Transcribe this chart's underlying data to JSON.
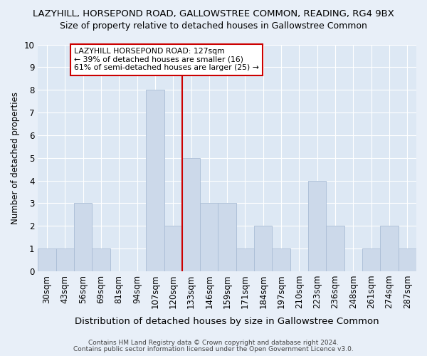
{
  "title": "LAZYHILL, HORSEPOND ROAD, GALLOWSTREE COMMON, READING, RG4 9BX",
  "subtitle": "Size of property relative to detached houses in Gallowstree Common",
  "xlabel": "Distribution of detached houses by size in Gallowstree Common",
  "ylabel": "Number of detached properties",
  "categories": [
    "30sqm",
    "43sqm",
    "56sqm",
    "69sqm",
    "81sqm",
    "94sqm",
    "107sqm",
    "120sqm",
    "133sqm",
    "146sqm",
    "159sqm",
    "171sqm",
    "184sqm",
    "197sqm",
    "210sqm",
    "223sqm",
    "236sqm",
    "248sqm",
    "261sqm",
    "274sqm",
    "287sqm"
  ],
  "values": [
    1,
    1,
    3,
    1,
    0,
    0,
    8,
    2,
    5,
    3,
    3,
    1,
    2,
    1,
    0,
    4,
    2,
    0,
    1,
    2,
    1
  ],
  "bar_color": "#ccd9ea",
  "bar_edge_color": "#aabdd6",
  "vline_idx": 8.0,
  "vline_color": "#cc0000",
  "annotation_line1": "LAZYHILL HORSEPOND ROAD: 127sqm",
  "annotation_line2": "← 39% of detached houses are smaller (16)",
  "annotation_line3": "61% of semi-detached houses are larger (25) →",
  "annotation_box_color": "#ffffff",
  "annotation_box_edge": "#cc0000",
  "ylim": [
    0,
    10
  ],
  "yticks": [
    0,
    1,
    2,
    3,
    4,
    5,
    6,
    7,
    8,
    9,
    10
  ],
  "footer1": "Contains HM Land Registry data © Crown copyright and database right 2024.",
  "footer2": "Contains public sector information licensed under the Open Government Licence v3.0.",
  "bg_color": "#e8eff8",
  "plot_bg_color": "#dde8f4",
  "title_fontsize": 9.5,
  "subtitle_fontsize": 9.0,
  "xlabel_fontsize": 9.5,
  "ylabel_fontsize": 8.5,
  "tick_fontsize": 8.5,
  "footer_fontsize": 6.5
}
